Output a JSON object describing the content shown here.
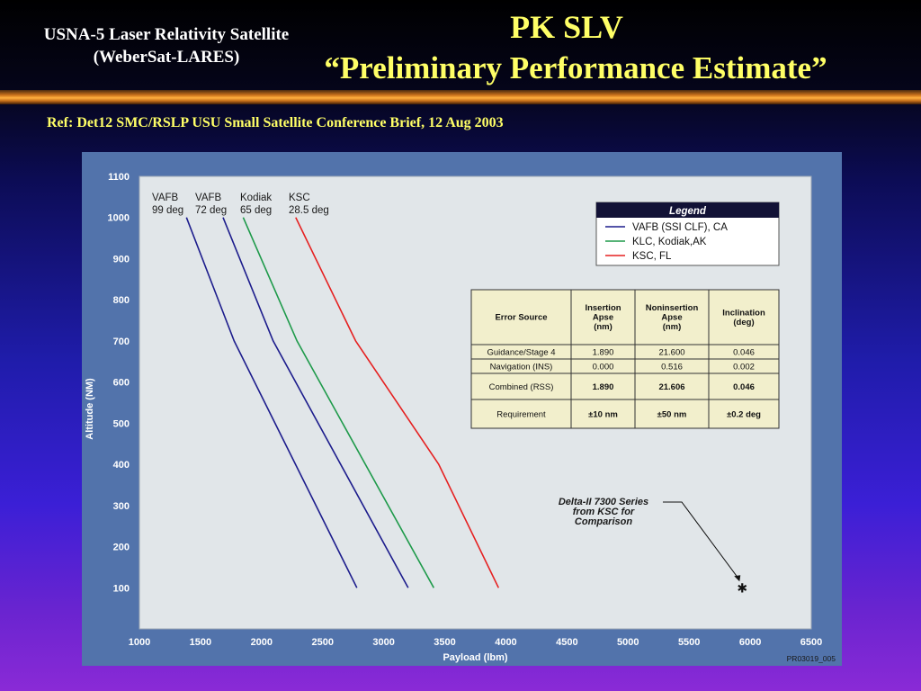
{
  "header": {
    "subtitle": "USNA-5 Laser Relativity Satellite (WeberSat-LARES)",
    "title_line1": "PK SLV",
    "title_line2": "“Preliminary Performance Estimate”",
    "reference": "Ref: Det12 SMC/RSLP USU Small Satellite Conference Brief, 12 Aug 2003"
  },
  "colors": {
    "vafb": "#1c1c8c",
    "klc": "#1e9a4a",
    "ksc": "#e52020",
    "plot_bg": "#e1e6e9",
    "frame": "#5273ab",
    "table_bg": "#f2efcc"
  },
  "chart_data": {
    "type": "line",
    "xlabel": "Payload (lbm)",
    "ylabel": "Altitude (NM)",
    "xlim": [
      1000,
      6500
    ],
    "ylim": [
      0,
      1100
    ],
    "xticks": [
      1000,
      1500,
      2000,
      2500,
      3000,
      3500,
      4000,
      4500,
      5000,
      5500,
      6000,
      6500
    ],
    "yticks": [
      100,
      200,
      300,
      400,
      500,
      600,
      700,
      800,
      900,
      1000,
      1100
    ],
    "grid": false,
    "legend_title": "Legend",
    "legend_placement": "top-right",
    "legend": [
      {
        "label": "VAFB (SSI CLF), CA",
        "color": "#1c1c8c"
      },
      {
        "label": "KLC, Kodiak,AK",
        "color": "#1e9a4a"
      },
      {
        "label": "KSC, FL",
        "color": "#e52020"
      }
    ],
    "series": [
      {
        "name": "VAFB 99 deg",
        "line1": "VAFB",
        "line2": "99 deg",
        "color": "#1c1c8c",
        "points": [
          [
            1385,
            1000
          ],
          [
            1775,
            700
          ],
          [
            2780,
            100
          ]
        ]
      },
      {
        "name": "VAFB 72 deg",
        "line1": "VAFB",
        "line2": "72 deg",
        "color": "#1c1c8c",
        "points": [
          [
            1685,
            1000
          ],
          [
            2095,
            700
          ],
          [
            3200,
            100
          ]
        ]
      },
      {
        "name": "Kodiak 65 deg",
        "line1": "Kodiak",
        "line2": "65 deg",
        "color": "#1e9a4a",
        "points": [
          [
            1850,
            1000
          ],
          [
            2290,
            700
          ],
          [
            3410,
            100
          ]
        ]
      },
      {
        "name": "KSC 28.5 deg",
        "line1": "KSC",
        "line2": "28.5 deg",
        "color": "#e52020",
        "points": [
          [
            2280,
            1000
          ],
          [
            2770,
            700
          ],
          [
            3450,
            400
          ],
          [
            3940,
            100
          ]
        ]
      }
    ],
    "comparison_point": {
      "x": 5935,
      "y": 100,
      "marker": "✱",
      "label_lines": [
        "Delta-II 7300 Series",
        "from KSC for",
        "Comparison"
      ]
    },
    "corner_id": "PR03019_005",
    "error_table": {
      "headers": [
        "Error Source",
        "Insertion Apse (nm)",
        "Noninsertion Apse (nm)",
        "Inclination (deg)"
      ],
      "header_lines": [
        [
          "Error Source"
        ],
        [
          "Insertion",
          "Apse",
          "(nm)"
        ],
        [
          "Noninsertion",
          "Apse",
          "(nm)"
        ],
        [
          "Inclination",
          "(deg)"
        ]
      ],
      "rows": [
        {
          "cells": [
            "Guidance/Stage 4",
            "1.890",
            "21.600",
            "0.046"
          ],
          "bold": false
        },
        {
          "cells": [
            "Navigation (INS)",
            "0.000",
            "0.516",
            "0.002"
          ],
          "bold": false
        },
        {
          "cells": [
            "Combined (RSS)",
            "1.890",
            "21.606",
            "0.046"
          ],
          "bold": true
        },
        {
          "cells": [
            "Requirement",
            "±10 nm",
            "±50 nm",
            "±0.2 deg"
          ],
          "bold": true
        }
      ]
    }
  }
}
